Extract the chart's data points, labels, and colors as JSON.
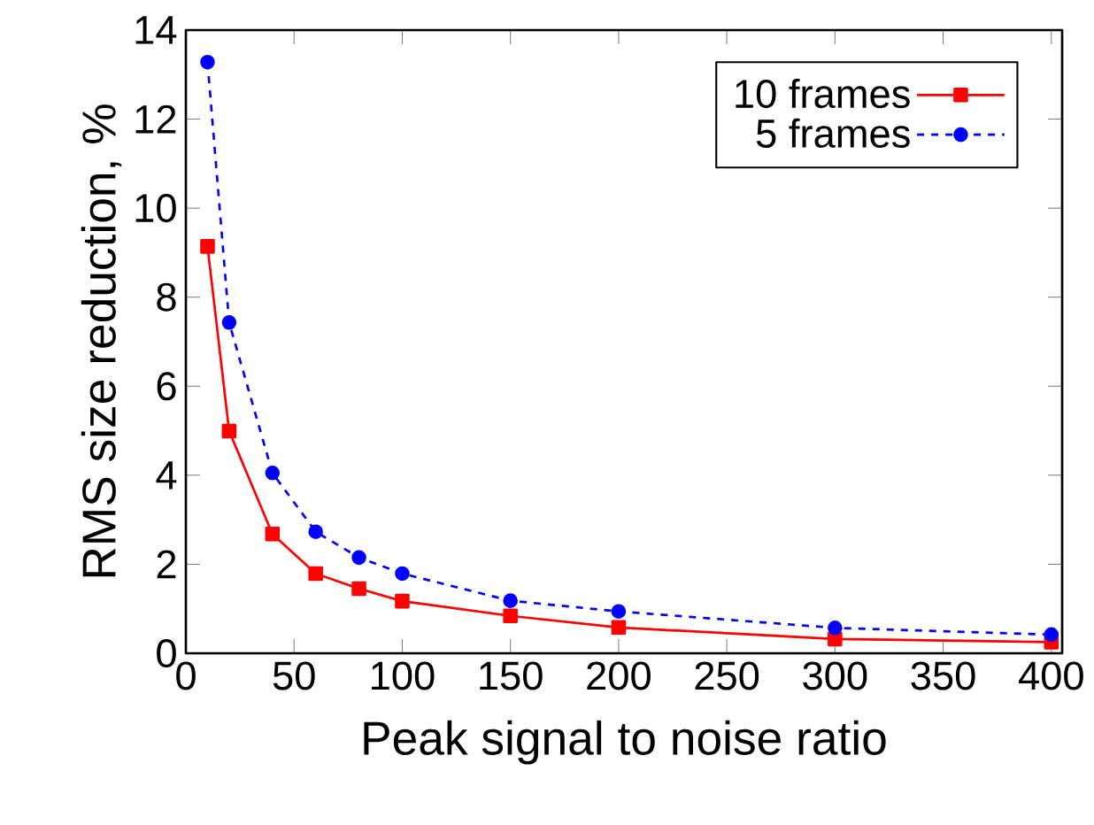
{
  "chart_data": {
    "type": "line",
    "xlabel": "Peak signal to noise ratio",
    "ylabel": "RMS size reduction, %",
    "x": [
      10,
      20,
      40,
      60,
      80,
      100,
      150,
      200,
      300,
      400
    ],
    "series": [
      {
        "name": "10 frames",
        "color": "#ff0000",
        "marker": "square",
        "line_style": "solid",
        "values": [
          9.14,
          4.99,
          2.68,
          1.79,
          1.45,
          1.17,
          0.84,
          0.58,
          0.32,
          0.25
        ]
      },
      {
        "name": "5 frames",
        "color": "#0000ff",
        "marker": "circle",
        "line_style": "dashed",
        "values": [
          13.28,
          7.43,
          4.05,
          2.73,
          2.15,
          1.79,
          1.18,
          0.94,
          0.57,
          0.42
        ]
      }
    ],
    "xlim": [
      0,
      405
    ],
    "ylim": [
      0,
      14
    ],
    "xticks": [
      0,
      50,
      100,
      150,
      200,
      250,
      300,
      350,
      400
    ],
    "yticks": [
      0,
      2,
      4,
      6,
      8,
      10,
      12,
      14
    ],
    "grid": false,
    "legend": "top right"
  }
}
